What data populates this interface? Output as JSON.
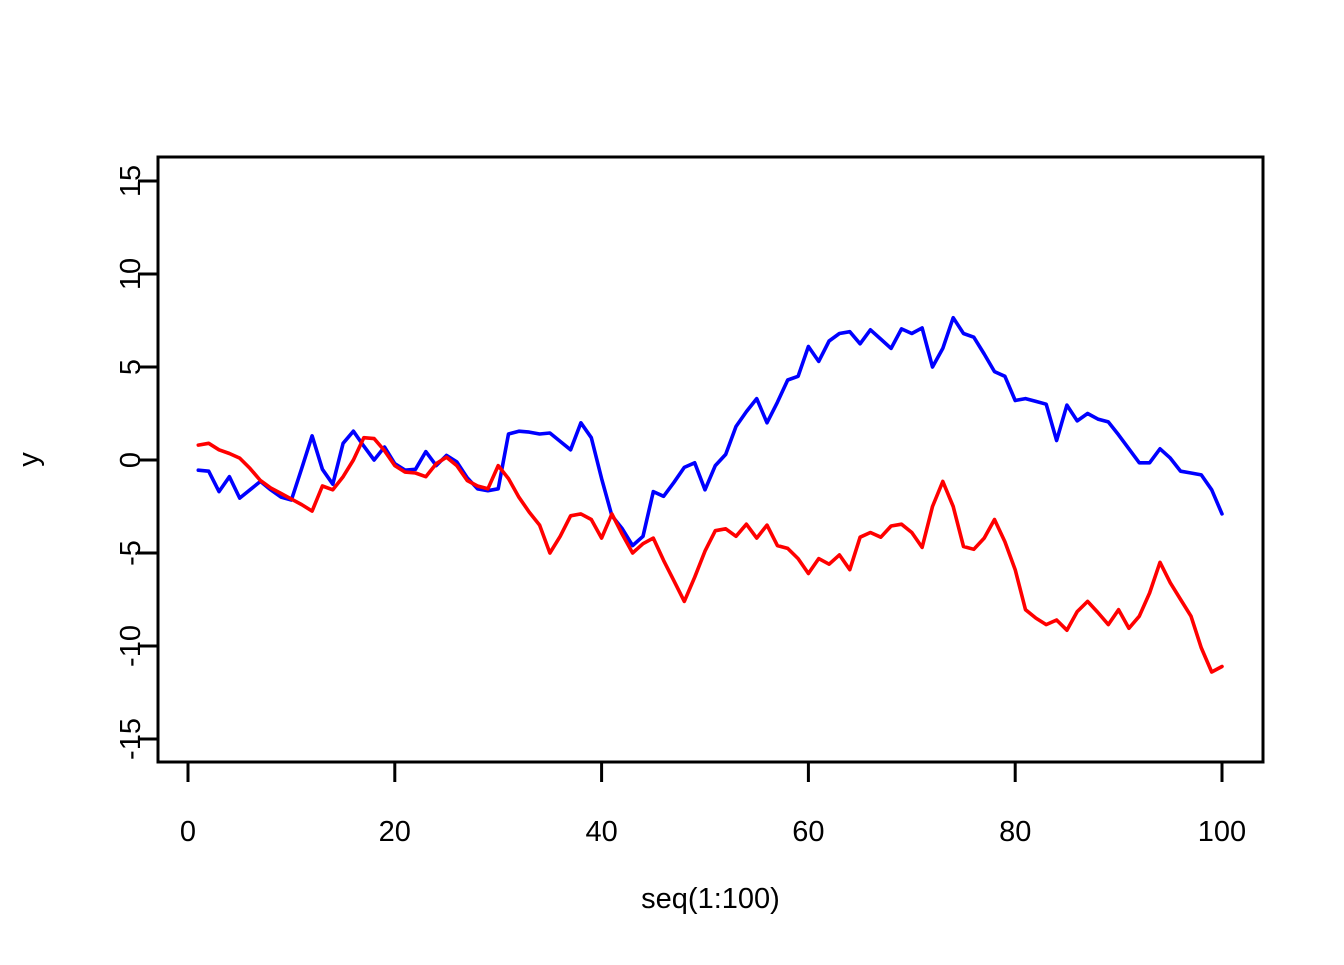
{
  "figure": {
    "background": "#ffffff",
    "axis_color": "#000000"
  },
  "chart_data": {
    "type": "line",
    "title": "",
    "xlabel": "seq(1:100)",
    "ylabel": "y",
    "xlim": [
      1,
      100
    ],
    "ylim": [
      -15,
      15
    ],
    "x_ticks": [
      0,
      20,
      40,
      60,
      80,
      100
    ],
    "y_ticks": [
      -15,
      -10,
      -5,
      0,
      5,
      10,
      15
    ],
    "grid": false,
    "legend_position": "none",
    "x": [
      1,
      2,
      3,
      4,
      5,
      6,
      7,
      8,
      9,
      10,
      11,
      12,
      13,
      14,
      15,
      16,
      17,
      18,
      19,
      20,
      21,
      22,
      23,
      24,
      25,
      26,
      27,
      28,
      29,
      30,
      31,
      32,
      33,
      34,
      35,
      36,
      37,
      38,
      39,
      40,
      41,
      42,
      43,
      44,
      45,
      46,
      47,
      48,
      49,
      50,
      51,
      52,
      53,
      54,
      55,
      56,
      57,
      58,
      59,
      60,
      61,
      62,
      63,
      64,
      65,
      66,
      67,
      68,
      69,
      70,
      71,
      72,
      73,
      74,
      75,
      76,
      77,
      78,
      79,
      80,
      81,
      82,
      83,
      84,
      85,
      86,
      87,
      88,
      89,
      90,
      91,
      92,
      93,
      94,
      95,
      96,
      97,
      98,
      99,
      100
    ],
    "series": [
      {
        "name": "blue-random-walk",
        "color": "#0000ff",
        "values": [
          -0.55,
          -0.6,
          -1.7,
          -0.9,
          -2.05,
          -1.6,
          -1.15,
          -1.6,
          -2.0,
          -2.15,
          -0.45,
          1.3,
          -0.5,
          -1.3,
          0.9,
          1.55,
          0.75,
          0.0,
          0.7,
          -0.2,
          -0.55,
          -0.5,
          0.45,
          -0.3,
          0.25,
          -0.1,
          -0.95,
          -1.55,
          -1.65,
          -1.55,
          1.4,
          1.55,
          1.5,
          1.4,
          1.45,
          1.0,
          0.55,
          2.0,
          1.2,
          -1.0,
          -3.0,
          -3.7,
          -4.6,
          -4.1,
          -1.7,
          -1.95,
          -1.2,
          -0.4,
          -0.15,
          -1.6,
          -0.3,
          0.3,
          1.8,
          2.6,
          3.3,
          2.0,
          3.1,
          4.3,
          4.5,
          6.1,
          5.3,
          6.4,
          6.8,
          6.9,
          6.25,
          7.0,
          6.5,
          6.0,
          7.05,
          6.8,
          7.1,
          5.0,
          6.0,
          7.65,
          6.8,
          6.6,
          5.7,
          4.75,
          4.5,
          3.2,
          3.3,
          3.15,
          3.0,
          1.05,
          2.95,
          2.1,
          2.5,
          2.2,
          2.05,
          1.35,
          0.6,
          -0.15,
          -0.15,
          0.6,
          0.1,
          -0.6,
          -0.7,
          -0.8,
          -1.6,
          -2.9
        ]
      },
      {
        "name": "red-random-walk",
        "color": "#ff0000",
        "values": [
          0.8,
          0.9,
          0.55,
          0.35,
          0.1,
          -0.45,
          -1.1,
          -1.5,
          -1.8,
          -2.1,
          -2.4,
          -2.75,
          -1.4,
          -1.6,
          -0.9,
          0.0,
          1.2,
          1.15,
          0.5,
          -0.3,
          -0.65,
          -0.7,
          -0.9,
          -0.2,
          0.15,
          -0.3,
          -1.1,
          -1.4,
          -1.55,
          -0.3,
          -1.0,
          -2.0,
          -2.8,
          -3.5,
          -5.0,
          -4.1,
          -3.0,
          -2.9,
          -3.2,
          -4.2,
          -2.9,
          -4.0,
          -5.0,
          -4.5,
          -4.2,
          -5.4,
          -6.5,
          -7.6,
          -6.3,
          -4.9,
          -3.8,
          -3.7,
          -4.1,
          -3.45,
          -4.2,
          -3.5,
          -4.6,
          -4.75,
          -5.3,
          -6.1,
          -5.3,
          -5.6,
          -5.1,
          -5.9,
          -4.15,
          -3.9,
          -4.15,
          -3.55,
          -3.45,
          -3.9,
          -4.7,
          -2.5,
          -1.15,
          -2.5,
          -4.65,
          -4.8,
          -4.2,
          -3.2,
          -4.4,
          -5.9,
          -8.05,
          -8.5,
          -8.85,
          -8.6,
          -9.15,
          -8.15,
          -7.6,
          -8.2,
          -8.85,
          -8.05,
          -9.05,
          -8.4,
          -7.15,
          -5.5,
          -6.6,
          -7.5,
          -8.4,
          -10.1,
          -11.4,
          -11.1
        ]
      }
    ]
  }
}
